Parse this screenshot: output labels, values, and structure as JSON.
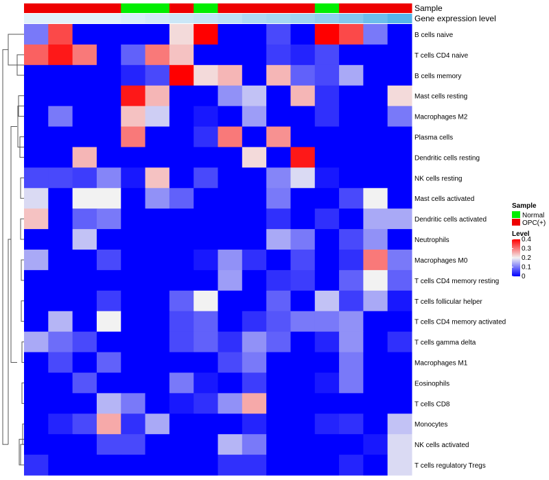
{
  "chart_data": {
    "type": "heatmap",
    "annotation_labels": {
      "sample": "Sample",
      "level": "Gene expression level"
    },
    "sample_annotation": [
      "OPC(+)",
      "OPC(+)",
      "OPC(+)",
      "OPC(+)",
      "Normal",
      "Normal",
      "OPC(+)",
      "Normal",
      "OPC(+)",
      "OPC(+)",
      "OPC(+)",
      "OPC(+)",
      "Normal",
      "OPC(+)",
      "OPC(+)",
      "OPC(+)"
    ],
    "level_annotation": [
      0.01,
      0.01,
      0.01,
      0.01,
      0.02,
      0.03,
      0.04,
      0.05,
      0.06,
      0.08,
      0.09,
      0.1,
      0.12,
      0.14,
      0.17,
      0.2
    ],
    "rows": [
      "B cells naive",
      "T cells CD4 naive",
      "B cells memory",
      "Mast cells resting",
      "Macrophages M2",
      "Plasma cells",
      "Dendritic cells resting",
      "NK cells resting",
      "Mast cells activated",
      "Dendritic cells activated",
      "Neutrophils",
      "Macrophages M0",
      "T cells CD4 memory resting",
      "T cells follicular helper",
      "T cells CD4 memory activated",
      "T cells gamma delta",
      "Macrophages M1",
      "Eosinophils",
      "T cells CD8",
      "Monocytes",
      "NK cells activated",
      "T cells regulatory  Tregs"
    ],
    "values": [
      [
        0.1,
        0.34,
        0,
        0,
        0,
        0,
        0.22,
        0.4,
        0,
        0,
        0.06,
        0,
        0.4,
        0.34,
        0.1,
        0
      ],
      [
        0.32,
        0.38,
        0.3,
        0,
        0.08,
        0.3,
        0.24,
        0,
        0,
        0,
        0.05,
        0.03,
        0.06,
        0,
        0,
        0
      ],
      [
        0,
        0,
        0,
        0,
        0.03,
        0.06,
        0.4,
        0.22,
        0.25,
        0,
        0.25,
        0.08,
        0.06,
        0.14,
        0,
        0
      ],
      [
        0,
        0,
        0,
        0,
        0.38,
        0.25,
        0,
        0,
        0.12,
        0.16,
        0,
        0.25,
        0.04,
        0,
        0,
        0.22
      ],
      [
        0,
        0.1,
        0,
        0,
        0.24,
        0.17,
        0,
        0.02,
        0,
        0.13,
        0,
        0,
        0.04,
        0,
        0,
        0.1
      ],
      [
        0,
        0,
        0,
        0,
        0.3,
        0,
        0,
        0.04,
        0.3,
        0,
        0.28,
        0,
        0,
        0,
        0,
        0
      ],
      [
        0,
        0,
        0.25,
        0,
        0,
        0,
        0,
        0,
        0,
        0.22,
        0,
        0.38,
        0,
        0,
        0,
        0
      ],
      [
        0.06,
        0.06,
        0.05,
        0.11,
        0.02,
        0.24,
        0,
        0.06,
        0,
        0,
        0.11,
        0.18,
        0.02,
        0,
        0,
        0
      ],
      [
        0.18,
        0,
        0.2,
        0.2,
        0,
        0.12,
        0.08,
        0,
        0,
        0,
        0.1,
        0,
        0,
        0.06,
        0.2,
        0
      ],
      [
        0.24,
        0,
        0.08,
        0.1,
        0,
        0,
        0,
        0,
        0,
        0,
        0.04,
        0,
        0.04,
        0,
        0.14,
        0.14
      ],
      [
        0,
        0,
        0.16,
        0,
        0,
        0,
        0,
        0,
        0,
        0,
        0.14,
        0.1,
        0,
        0.06,
        0.12,
        0
      ],
      [
        0.14,
        0,
        0,
        0.06,
        0,
        0,
        0,
        0.02,
        0.12,
        0.04,
        0,
        0.06,
        0,
        0.04,
        0.3,
        0.1
      ],
      [
        0,
        0,
        0,
        0,
        0,
        0,
        0,
        0,
        0.13,
        0,
        0.04,
        0.05,
        0,
        0.08,
        0.2,
        0.08
      ],
      [
        0,
        0,
        0,
        0.05,
        0,
        0,
        0.08,
        0.2,
        0,
        0,
        0.08,
        0,
        0.16,
        0.05,
        0.14,
        0.02
      ],
      [
        0,
        0.15,
        0,
        0.2,
        0,
        0,
        0.06,
        0.08,
        0,
        0.04,
        0.07,
        0.1,
        0.1,
        0.12,
        0,
        0
      ],
      [
        0.14,
        0.09,
        0.06,
        0,
        0,
        0,
        0.06,
        0.08,
        0.04,
        0.12,
        0.08,
        0,
        0.03,
        0.12,
        0,
        0.04
      ],
      [
        0,
        0.06,
        0,
        0.08,
        0,
        0,
        0,
        0,
        0.06,
        0.1,
        0,
        0,
        0,
        0.1,
        0,
        0
      ],
      [
        0,
        0,
        0.07,
        0,
        0,
        0,
        0.1,
        0.02,
        0,
        0.05,
        0,
        0,
        0.02,
        0.1,
        0,
        0
      ],
      [
        0,
        0,
        0,
        0.15,
        0.1,
        0,
        0.02,
        0.04,
        0.12,
        0.26,
        0,
        0,
        0,
        0,
        0,
        0
      ],
      [
        0,
        0.03,
        0.06,
        0.26,
        0.04,
        0.14,
        0,
        0,
        0,
        0.03,
        0,
        0,
        0.03,
        0.04,
        0,
        0.16
      ],
      [
        0,
        0,
        0,
        0.06,
        0.06,
        0,
        0,
        0,
        0.15,
        0.1,
        0,
        0,
        0,
        0,
        0.02,
        0.18
      ],
      [
        0.04,
        0,
        0,
        0,
        0,
        0,
        0,
        0,
        0.04,
        0.04,
        0,
        0,
        0,
        0.03,
        0,
        0.18
      ]
    ],
    "color_scale": {
      "low": "#0000ff",
      "mid": "#f2f2f2",
      "high": "#ff0000",
      "min": 0,
      "mid_value": 0.2,
      "max": 0.4
    },
    "legend": {
      "sample_title": "Sample",
      "sample_items": [
        {
          "label": "Normal",
          "color": "#00ee00"
        },
        {
          "label": "OPC(+)",
          "color": "#ee0000"
        }
      ],
      "level_title": "Level",
      "level_ticks": [
        "0.4",
        "0.3",
        "0.2",
        "0.1",
        "0"
      ],
      "level_tick_values": [
        0.4,
        0.3,
        0.2,
        0.1,
        0
      ],
      "placement": "right"
    },
    "dendrogram": "rows",
    "annotation_colors": {
      "level_low": "#e8f4fb",
      "level_high": "#56b4e9"
    }
  }
}
